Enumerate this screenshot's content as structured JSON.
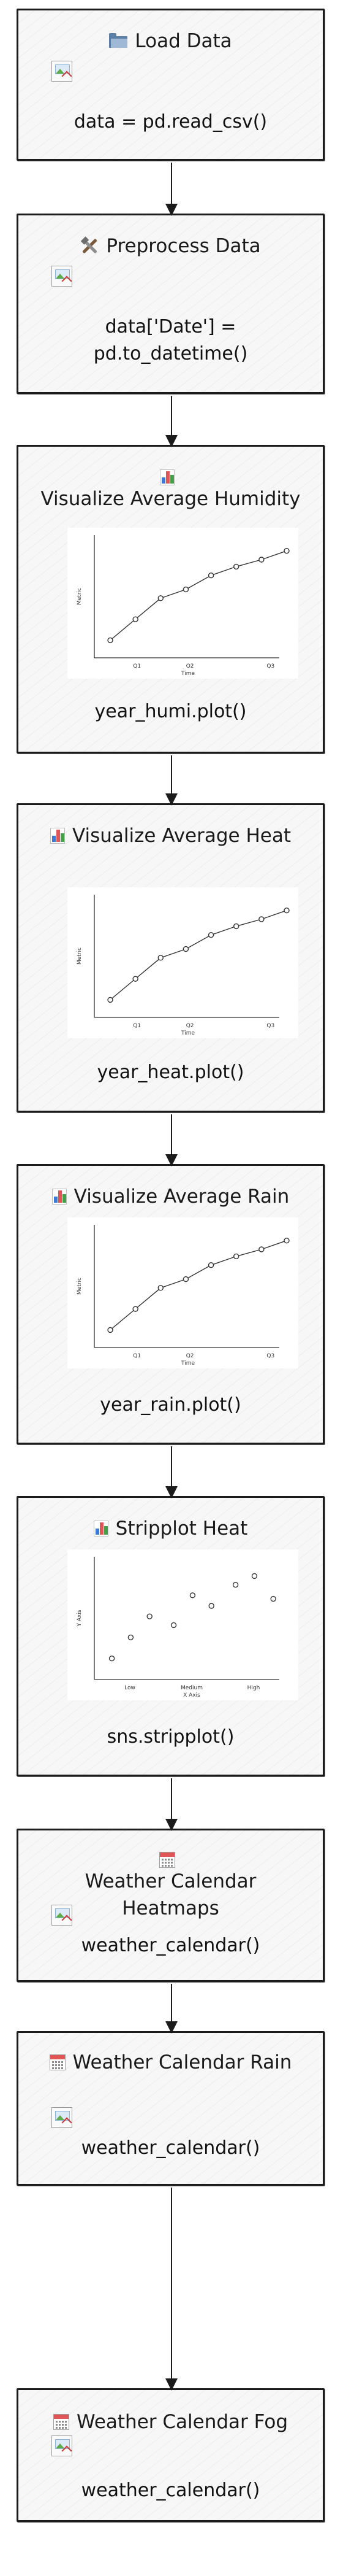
{
  "nodes": [
    {
      "id": "load",
      "icon": "folder-icon",
      "title": "Load Data",
      "code": "data = pd.read_csv()",
      "image": "broken"
    },
    {
      "id": "preprocess",
      "icon": "tools-icon",
      "title": "Preprocess Data",
      "code": "data['Date'] = pd.to_datetime()",
      "image": "broken"
    },
    {
      "id": "humidity",
      "icon": "bar-chart-icon",
      "title": "Visualize Average Humidity",
      "code": "year_humi.plot()",
      "image": "line-chart"
    },
    {
      "id": "heat",
      "icon": "bar-chart-icon",
      "title": "Visualize Average Heat",
      "code": "year_heat.plot()",
      "image": "line-chart"
    },
    {
      "id": "rain",
      "icon": "bar-chart-icon",
      "title": "Visualize Average Rain",
      "code": "year_rain.plot()",
      "image": "line-chart"
    },
    {
      "id": "stripplot",
      "icon": "bar-chart-icon",
      "title": "Stripplot Heat",
      "code": "sns.stripplot()",
      "image": "strip-chart"
    },
    {
      "id": "calendar-heatmaps",
      "icon": "calendar-icon",
      "title": "Weather Calendar Heatmaps",
      "code": "weather_calendar()",
      "image": "broken"
    },
    {
      "id": "calendar-rain",
      "icon": "calendar-icon",
      "title": "Weather Calendar Rain",
      "code": "weather_calendar()",
      "image": "broken"
    },
    {
      "id": "calendar-fog",
      "icon": "calendar-icon",
      "title": "Weather Calendar Fog",
      "code": "weather_calendar()",
      "image": "broken"
    }
  ],
  "edges": [
    [
      "load",
      "preprocess"
    ],
    [
      "preprocess",
      "humidity"
    ],
    [
      "humidity",
      "heat"
    ],
    [
      "heat",
      "rain"
    ],
    [
      "rain",
      "stripplot"
    ],
    [
      "stripplot",
      "calendar-heatmaps"
    ],
    [
      "calendar-heatmaps",
      "calendar-rain"
    ],
    [
      "calendar-rain",
      "calendar-fog"
    ]
  ],
  "line_chart": {
    "type": "line",
    "x": [
      0,
      1,
      2,
      3,
      4,
      5,
      6,
      7
    ],
    "y": [
      1.0,
      2.2,
      3.4,
      3.9,
      4.7,
      5.2,
      5.6,
      6.1
    ],
    "xlim": [
      0,
      7
    ],
    "ylim": [
      0,
      7
    ],
    "xtick_labels": [
      "Q1",
      "Q2",
      "Q3"
    ],
    "xtick_positions": [
      1.5,
      3.6,
      6.8
    ],
    "xlabel": "Time",
    "ylabel": "Metric"
  },
  "strip_chart": {
    "type": "scatter",
    "categories": [
      "Low",
      "Medium",
      "High"
    ],
    "points": [
      {
        "cat": 0,
        "offset": -0.42,
        "y": 1.2
      },
      {
        "cat": 0,
        "offset": 0.02,
        "y": 2.4
      },
      {
        "cat": 0,
        "offset": 0.46,
        "y": 3.6
      },
      {
        "cat": 1,
        "offset": -0.42,
        "y": 3.1
      },
      {
        "cat": 1,
        "offset": 0.02,
        "y": 4.8
      },
      {
        "cat": 1,
        "offset": 0.46,
        "y": 4.2
      },
      {
        "cat": 2,
        "offset": -0.42,
        "y": 5.4
      },
      {
        "cat": 2,
        "offset": 0.02,
        "y": 5.9
      },
      {
        "cat": 2,
        "offset": 0.46,
        "y": 4.6
      }
    ],
    "ylim": [
      0,
      7
    ],
    "xlabel": "X Axis",
    "ylabel": "Y Axis"
  },
  "colors": {
    "node_border": "#1b1b1b",
    "node_fill": "#f7f7f7",
    "edge": "#1b1b1b",
    "icon_folder": "#5b7fa6",
    "icon_bar_1": "#3d7ad6",
    "icon_bar_2": "#e05656",
    "icon_bar_3": "#43a047",
    "icon_calendar_top": "#e05656"
  }
}
